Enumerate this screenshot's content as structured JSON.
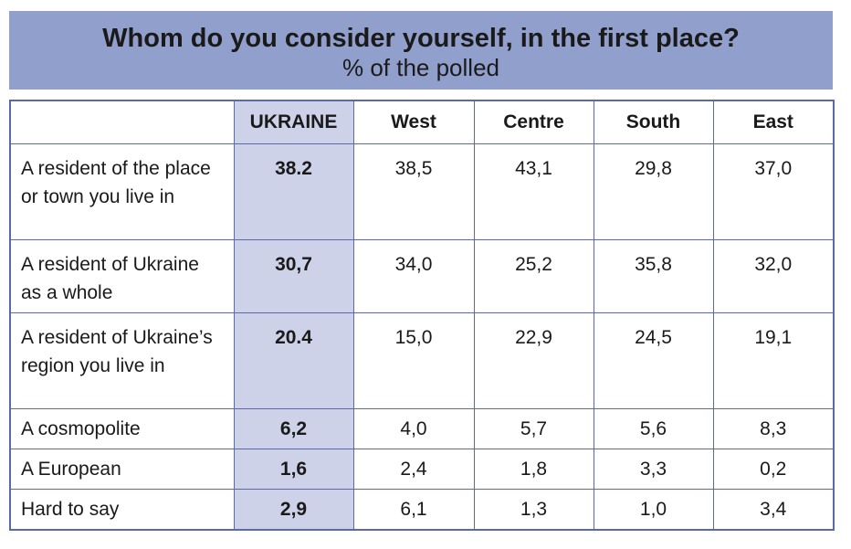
{
  "header": {
    "title": "Whom do you consider yourself, in the first place?",
    "subtitle": "% of the polled",
    "background": "#919fcc"
  },
  "chart_data": {
    "type": "table",
    "title": "Whom do you consider yourself, in the first place?",
    "subtitle": "% of the polled",
    "columns": [
      "",
      "UKRAINE",
      "West",
      "Centre",
      "South",
      "East"
    ],
    "rows": [
      {
        "label": "A resident of the place or town you live in",
        "values": [
          "38.2",
          "38,5",
          "43,1",
          "29,8",
          "37,0"
        ]
      },
      {
        "label": "A resident of Ukraine as a whole",
        "values": [
          "30,7",
          "34,0",
          "25,2",
          "35,8",
          "32,0"
        ]
      },
      {
        "label": "A resident of Ukraine’s region you live in",
        "values": [
          "20.4",
          "15,0",
          "22,9",
          "24,5",
          "19,1"
        ]
      },
      {
        "label": "A cosmopolite",
        "values": [
          "6,2",
          "4,0",
          "5,7",
          "5,6",
          "8,3"
        ]
      },
      {
        "label": "A European",
        "values": [
          "1,6",
          "2,4",
          "1,8",
          "3,3",
          "0,2"
        ]
      },
      {
        "label": "Hard to say",
        "values": [
          "2,9",
          "6,1",
          "1,3",
          "1,0",
          "3,4"
        ]
      }
    ],
    "highlight_column_color": "#cdd2e8",
    "border_color": "#5a6aa8"
  }
}
